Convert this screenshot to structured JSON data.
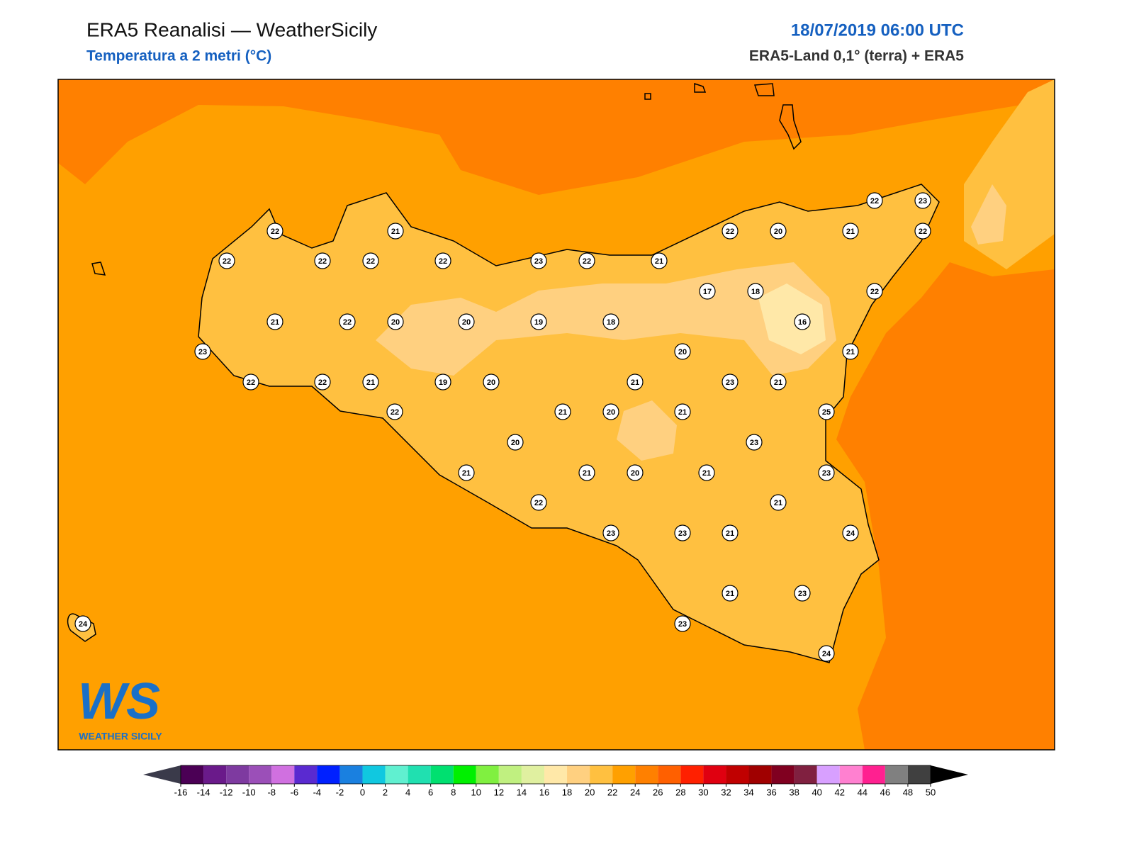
{
  "header": {
    "title": "ERA5 Reanalisi — WeatherSicily",
    "subtitle": "Temperatura a 2 metri (°C)",
    "datetime": "18/07/2019 06:00 UTC",
    "source": "ERA5-Land 0,1° (terra) + ERA5"
  },
  "stations": [
    22,
    21,
    22,
    22,
    22,
    22,
    23,
    22,
    21,
    22,
    20,
    21,
    22,
    22,
    23,
    17,
    18,
    22,
    21,
    22,
    20,
    20,
    19,
    18,
    16,
    23,
    20,
    21,
    22,
    22,
    21,
    19,
    20,
    21,
    23,
    21,
    22,
    21,
    20,
    21,
    25,
    20,
    23,
    21,
    21,
    20,
    21,
    23,
    22,
    21,
    23,
    23,
    21,
    24,
    21,
    23,
    23,
    24,
    24
  ],
  "colorbar": {
    "ticks": [
      -16,
      -14,
      -12,
      -10,
      -8,
      -6,
      -4,
      -2,
      0,
      2,
      4,
      6,
      8,
      10,
      12,
      14,
      16,
      18,
      20,
      22,
      24,
      26,
      28,
      30,
      32,
      34,
      36,
      38,
      40,
      42,
      44,
      46,
      48,
      50
    ],
    "colors": [
      "#4b0055",
      "#6a1a8a",
      "#7e3aa0",
      "#9b4fb8",
      "#d070e0",
      "#5a2ad0",
      "#0020ff",
      "#1a80e0",
      "#10c8e0",
      "#60f0d0",
      "#20e0b0",
      "#00e070",
      "#00f000",
      "#80f040",
      "#c0f080",
      "#e0f0a0",
      "#ffe8a8",
      "#ffd080",
      "#ffc040",
      "#ffa000",
      "#ff8000",
      "#ff6000",
      "#ff2000",
      "#e00010",
      "#c00000",
      "#a00000",
      "#800020",
      "#802040",
      "#d8a0ff",
      "#ff80d0",
      "#ff2090",
      "#808080",
      "#404040"
    ],
    "under": "#3a3a4a",
    "over": "#000000"
  },
  "logo": {
    "mark": "WS",
    "text": "WEATHER SICILY"
  }
}
